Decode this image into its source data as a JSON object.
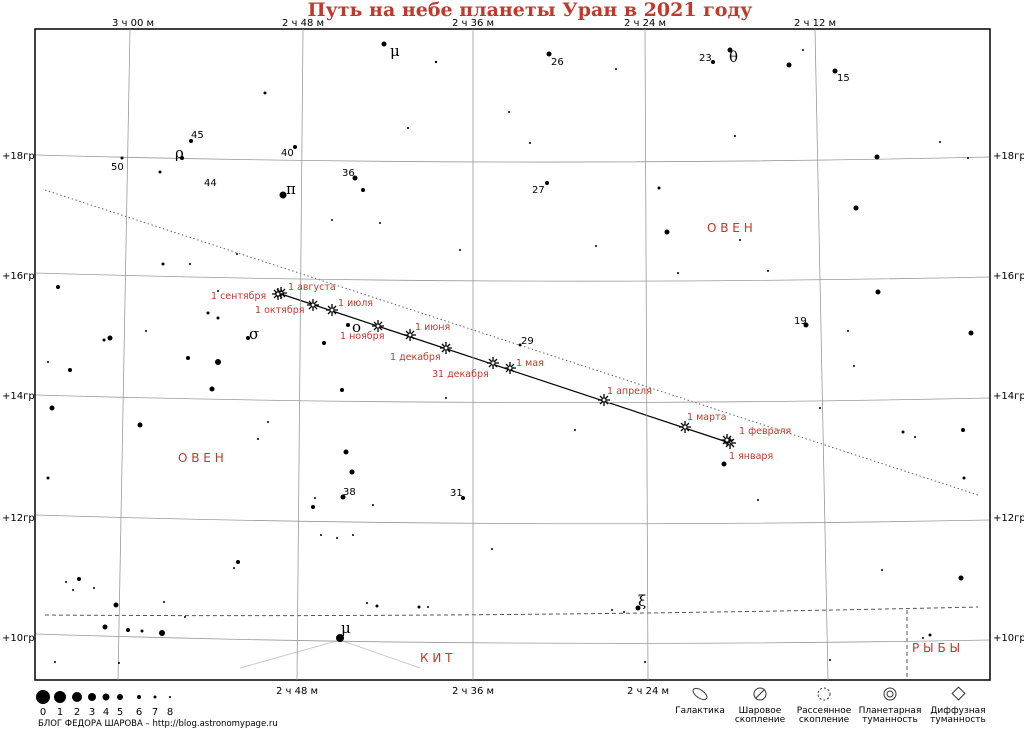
{
  "title": "Путь на небе планеты Уран в 2021 году",
  "ra_labels_top": [
    "3 ч 00 м",
    "2 ч 48 м",
    "2 ч 36 м",
    "2 ч 24 м",
    "2 ч 12 м"
  ],
  "ra_labels_bottom": [
    "2 ч 48 м",
    "2 ч 36 м",
    "2 ч 24 м"
  ],
  "dec_labels_left": [
    "+18гр",
    "+16гр",
    "+14гр",
    "+12гр",
    "+10гр"
  ],
  "dec_labels_right": [
    "+18гр",
    "+16гр",
    "+14гр",
    "+12гр",
    "+10гр"
  ],
  "constellations": [
    "О В Е Н",
    "О В Е Н",
    "К И Т",
    "Р Ы Б Ы"
  ],
  "star_labels": [
    "μ",
    "26",
    "23",
    "θ",
    "15",
    "45",
    "ρ",
    "50",
    "44",
    "40",
    "36",
    "π",
    "27",
    "σ",
    "ο",
    "29",
    "19",
    "38",
    "31",
    "ξ",
    "μ"
  ],
  "uranus_dates": [
    "1 августа",
    "1 сентября",
    "1 октября",
    "1 июля",
    "1 ноября",
    "1 июня",
    "1 декабря",
    "31 декабря",
    "1 мая",
    "1 апреля",
    "1 марта",
    "1 февраля",
    "1 января"
  ],
  "magnitude_scale": [
    "0",
    "1",
    "2",
    "3",
    "4",
    "5",
    "6",
    "7",
    "8"
  ],
  "credit": "БЛОГ ФЕДОРА ШАРОВА – http://blog.astronomypage.ru",
  "legend": [
    [
      "Галактика"
    ],
    [
      "Шаровое",
      "скопление"
    ],
    [
      "Рассеянное",
      "скопление"
    ],
    [
      "Планетарная",
      "туманность"
    ],
    [
      "Диффузная",
      "туманность"
    ]
  ]
}
